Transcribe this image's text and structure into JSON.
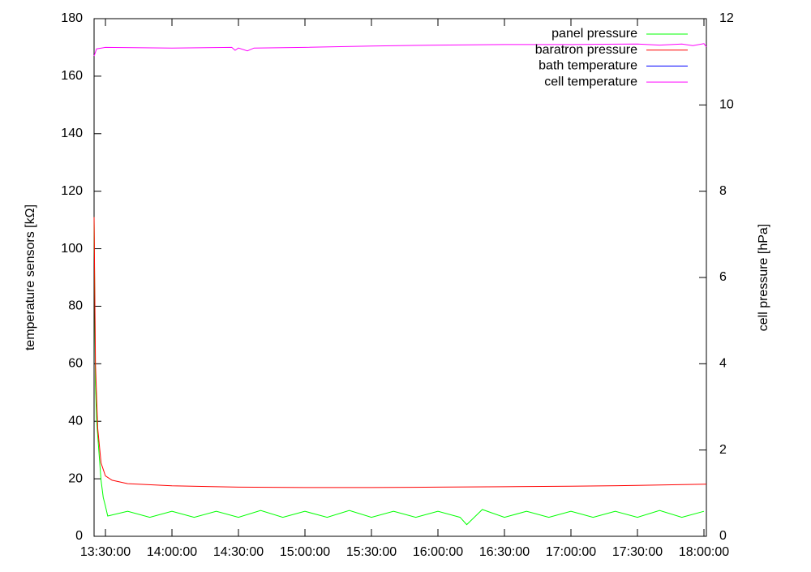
{
  "chart_data": {
    "type": "line",
    "ylabel": "temperature sensors [kΩ]",
    "y2label": "cell pressure [hPa]",
    "xlim": [
      "13:24:52",
      "18:01:06"
    ],
    "xticks": [
      "13:30:00",
      "14:00:00",
      "14:30:00",
      "15:00:00",
      "15:30:00",
      "16:00:00",
      "16:30:00",
      "17:00:00",
      "17:30:00",
      "18:00:00"
    ],
    "ylim": [
      0,
      180
    ],
    "yticks": [
      0,
      20,
      40,
      60,
      80,
      100,
      120,
      140,
      160,
      180
    ],
    "y2lim": [
      0,
      12
    ],
    "y2ticks": [
      0,
      2,
      4,
      6,
      8,
      10,
      12
    ],
    "legend": "top-right",
    "series": [
      {
        "name": "panel pressure",
        "color": "#00ff00",
        "axis": "y2",
        "x": [
          "13:24:52",
          "13:25:30",
          "13:26:00",
          "13:27:00",
          "13:28:00",
          "13:29:00",
          "13:30:00",
          "13:31:00",
          "13:40:00",
          "13:50:00",
          "14:00:00",
          "14:10:00",
          "14:20:00",
          "14:30:00",
          "14:40:00",
          "14:50:00",
          "15:00:00",
          "15:10:00",
          "15:20:00",
          "15:30:00",
          "15:40:00",
          "15:50:00",
          "16:00:00",
          "16:10:00",
          "16:13:00",
          "16:20:00",
          "16:30:00",
          "16:40:00",
          "16:50:00",
          "17:00:00",
          "17:10:00",
          "17:20:00",
          "17:30:00",
          "17:40:00",
          "17:50:00",
          "18:00:00"
        ],
        "values": [
          7.4,
          3.5,
          2.7,
          2.0,
          1.3,
          0.9,
          0.7,
          0.47,
          0.58,
          0.44,
          0.58,
          0.44,
          0.58,
          0.44,
          0.6,
          0.44,
          0.58,
          0.44,
          0.6,
          0.44,
          0.58,
          0.44,
          0.58,
          0.44,
          0.27,
          0.62,
          0.44,
          0.58,
          0.44,
          0.58,
          0.44,
          0.58,
          0.44,
          0.6,
          0.44,
          0.58
        ]
      },
      {
        "name": "baratron pressure",
        "color": "#ff0000",
        "axis": "y2",
        "x": [
          "13:24:52",
          "13:25:30",
          "13:26:30",
          "13:28:00",
          "13:30:00",
          "13:33:00",
          "13:40:00",
          "14:00:00",
          "14:30:00",
          "15:00:00",
          "15:30:00",
          "16:00:00",
          "16:30:00",
          "17:00:00",
          "17:30:00",
          "18:01:06"
        ],
        "values": [
          7.4,
          4.0,
          2.5,
          1.7,
          1.4,
          1.3,
          1.22,
          1.17,
          1.14,
          1.13,
          1.13,
          1.14,
          1.15,
          1.16,
          1.18,
          1.21
        ]
      },
      {
        "name": "bath temperature",
        "color": "#0000ff",
        "x": [],
        "values": []
      },
      {
        "name": "cell temperature",
        "color": "#ff00ff",
        "x": [
          "13:24:52",
          "13:26:00",
          "13:30:00",
          "14:00:00",
          "14:27:00",
          "14:28:30",
          "14:30:00",
          "14:34:00",
          "14:37:00",
          "15:00:00",
          "15:30:00",
          "16:00:00",
          "16:30:00",
          "17:00:00",
          "17:30:00",
          "17:40:00",
          "17:50:00",
          "17:55:00",
          "18:00:00",
          "18:01:06"
        ],
        "values": [
          167,
          169.5,
          170,
          169.8,
          170,
          169,
          169.8,
          168.8,
          169.8,
          170,
          170.5,
          170.8,
          171,
          171,
          171.2,
          170.8,
          171.2,
          170.6,
          171.3,
          170.2
        ]
      }
    ]
  }
}
